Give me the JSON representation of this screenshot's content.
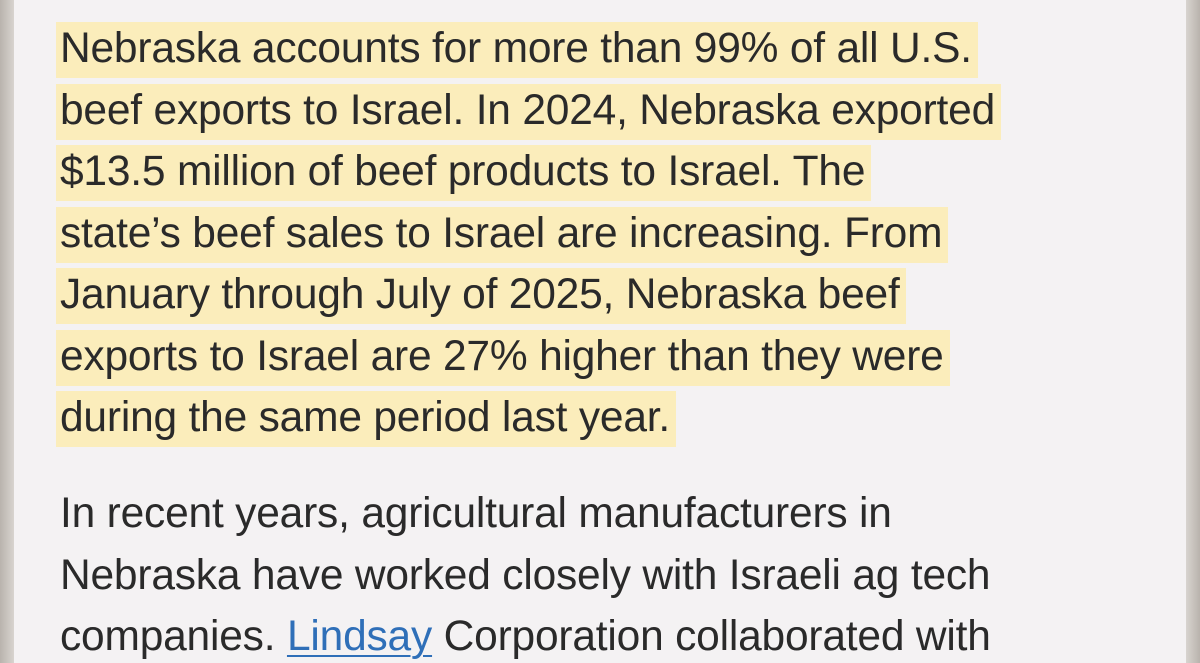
{
  "article": {
    "paragraph_1": {
      "lines": [
        "Nebraska accounts for more than 99% of all U.S.",
        "beef exports to Israel. In 2024, Nebraska exported",
        "$13.5 million of beef products to Israel. The",
        "state’s beef sales to Israel are increasing. From",
        "January through July of 2025, Nebraska beef",
        "exports to Israel are 27% higher than they were",
        "during the same period last year."
      ]
    },
    "paragraph_2": {
      "line_1": "In recent years, agricultural manufacturers in",
      "line_2": "Nebraska have worked closely with Israeli ag tech",
      "line_3_before": "companies. ",
      "line_3_link": "Lindsay",
      "line_3_after": " Corporation collaborated with"
    }
  },
  "colors": {
    "highlight": "#fbedbb",
    "text": "#2a2a2a",
    "link": "#2f6fb8",
    "page_background": "#f4f2f3"
  }
}
